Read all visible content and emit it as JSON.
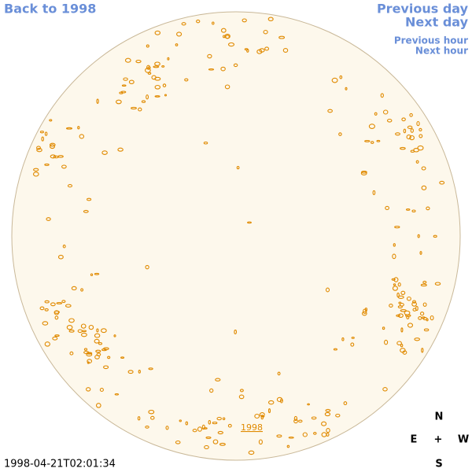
{
  "navigation": {
    "back": "Back to 1998",
    "previous_day": "Previous day",
    "next_day": "Next day",
    "previous_hour": "Previous hour",
    "next_hour": "Next hour"
  },
  "image_link": "1998",
  "timestamp": "1998-04-21T02:01:34",
  "compass": {
    "north": "N",
    "east": "E",
    "center": "+",
    "west": "W",
    "south": "S"
  }
}
